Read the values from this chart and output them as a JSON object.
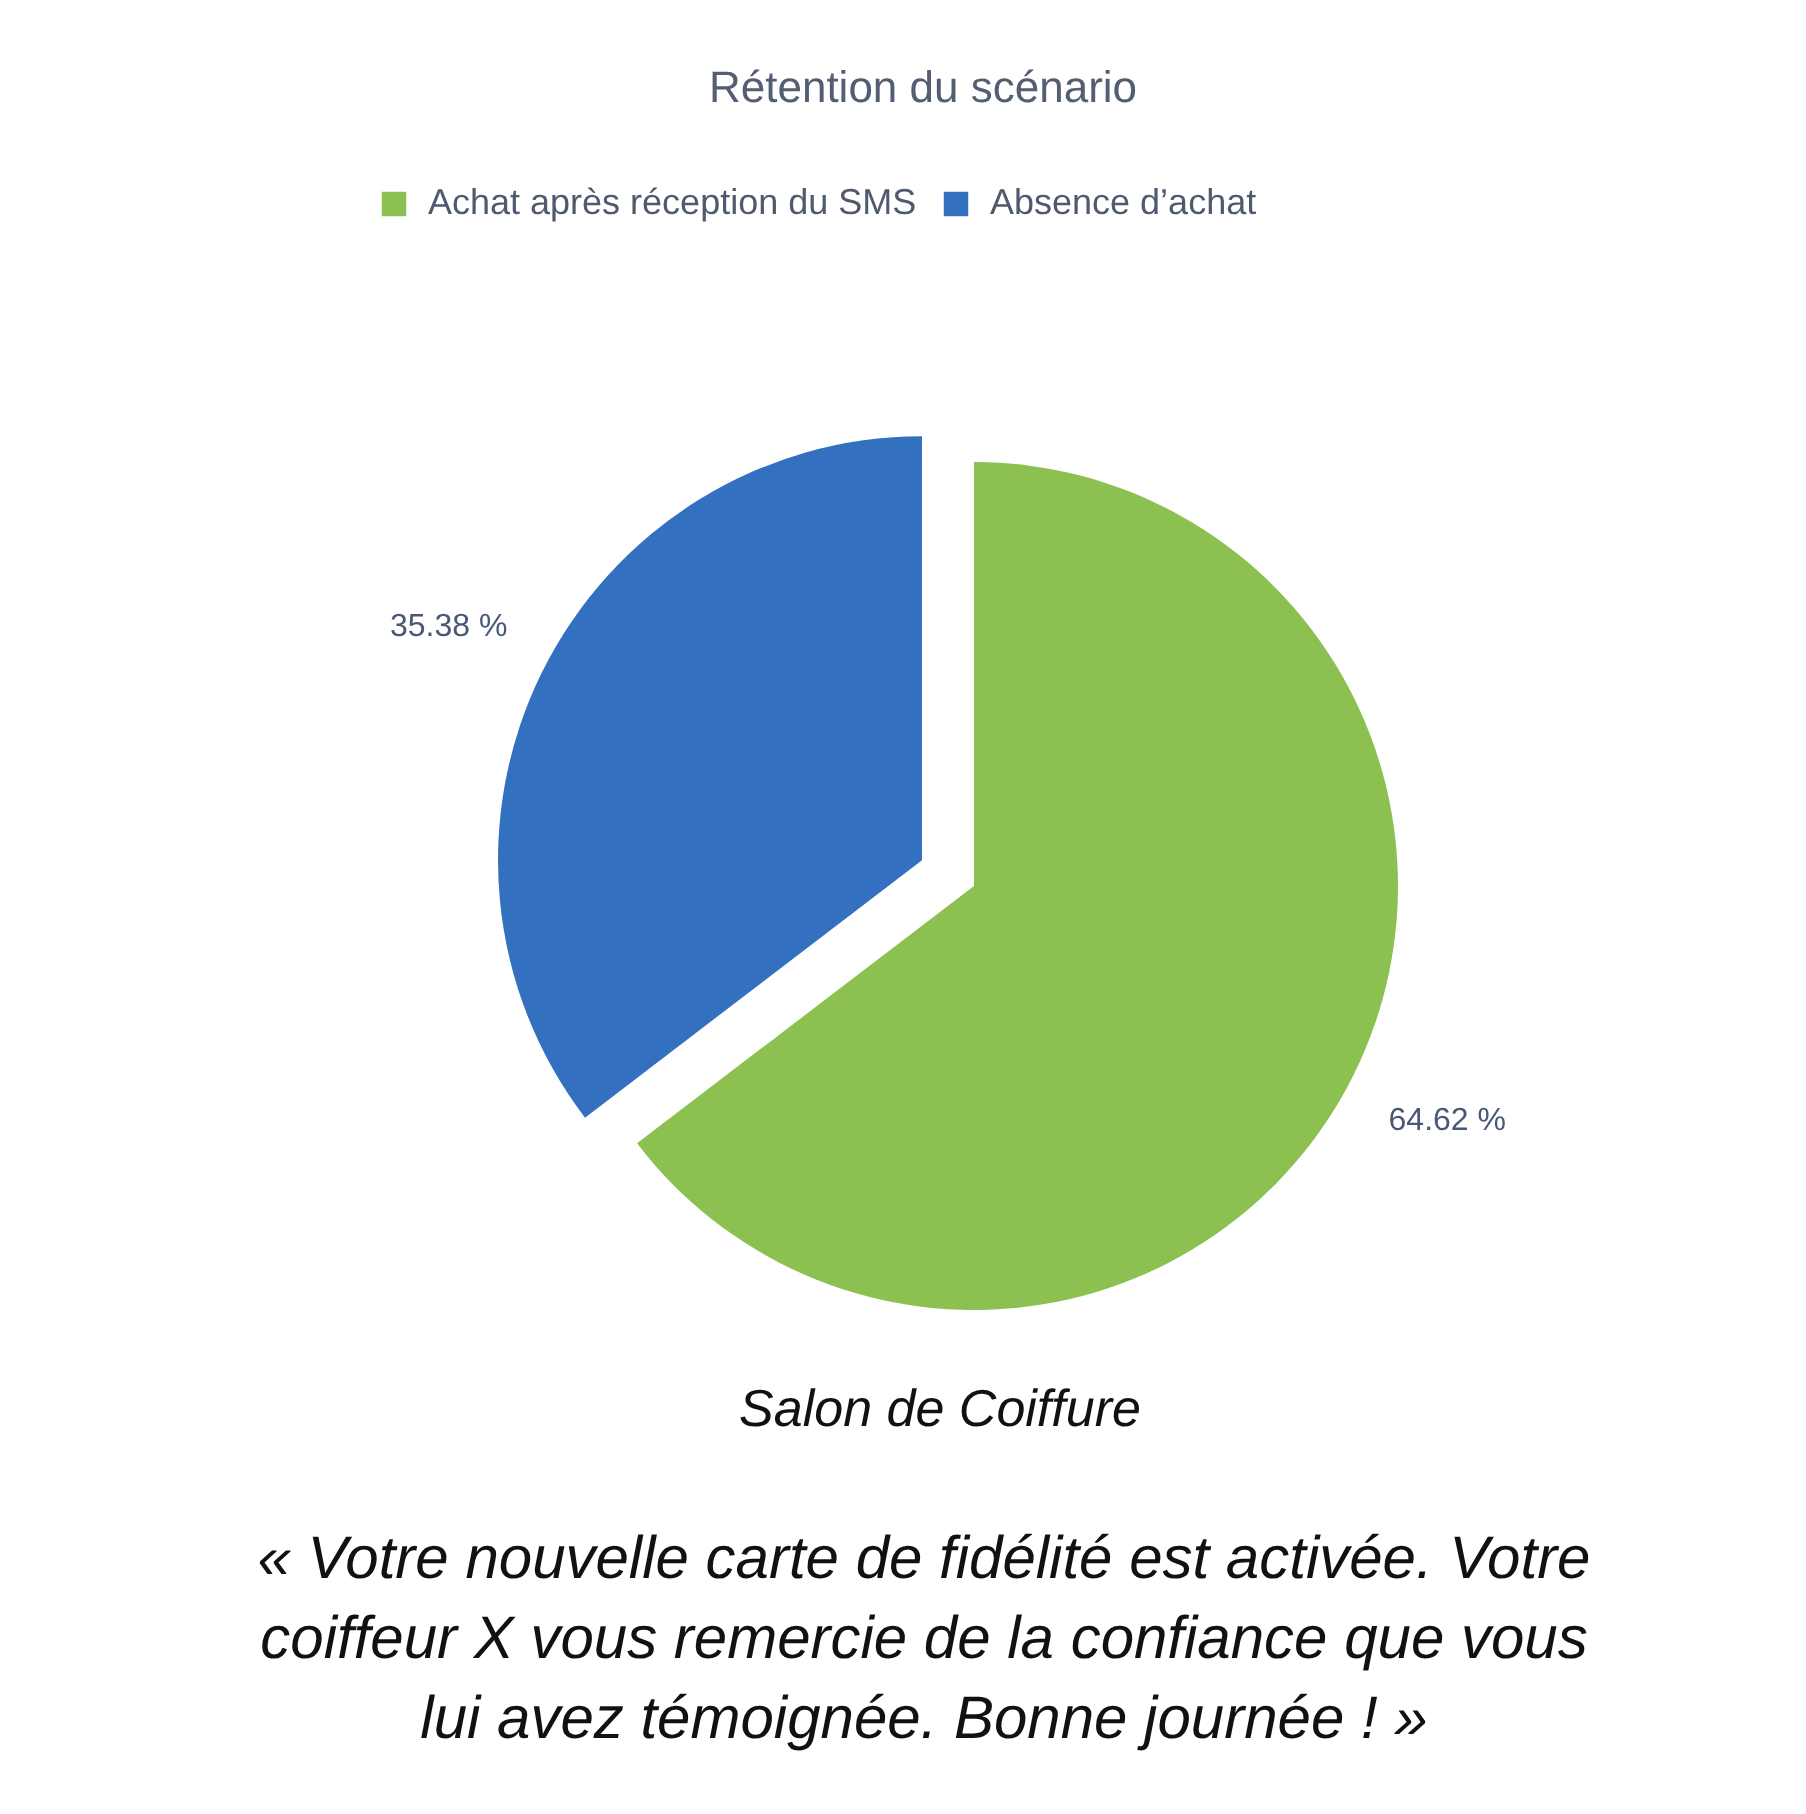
{
  "chart_data": {
    "type": "pie",
    "title": "Rétention du scénario",
    "categories": [
      "Achat après réception du SMS",
      "Absence d’achat"
    ],
    "values": [
      64.62,
      35.38
    ],
    "colors": [
      "#8cc152",
      "#3470c0"
    ],
    "value_labels": [
      "64.62 %",
      "35.38 %"
    ],
    "legend": "top",
    "annotations": [
      "Salon de Coiffure",
      "« Votre nouvelle carte de fidélité est activée. Votre coiffeur X vous remercie de la confiance que vous lui avez témoignée. Bonne journée ! »"
    ]
  }
}
